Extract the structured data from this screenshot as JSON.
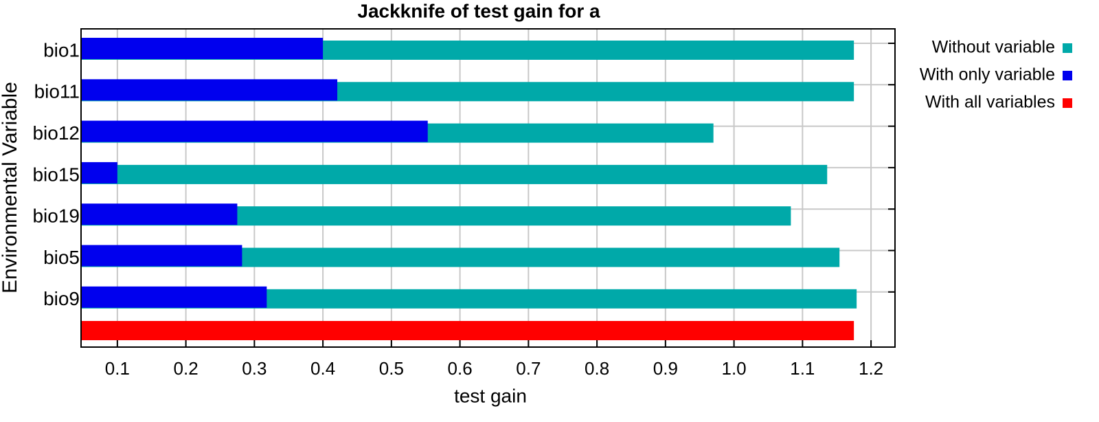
{
  "chart_data": {
    "type": "bar",
    "orientation": "horizontal",
    "title": "Jackknife of test gain for a",
    "x_label": "test gain",
    "y_label": "Environmental Variable",
    "categories": [
      "bio1",
      "bio11",
      "bio12",
      "bio15",
      "bio19",
      "bio5",
      "bio9",
      null
    ],
    "series": [
      {
        "name": "Without variable",
        "color": "#00a9a9",
        "values": [
          1.175,
          1.175,
          0.97,
          1.136,
          1.083,
          1.154,
          1.179,
          null
        ]
      },
      {
        "name": "With only variable",
        "color": "#0000ee",
        "values": [
          0.4,
          0.421,
          0.553,
          0.1,
          0.275,
          0.282,
          0.318,
          null
        ]
      },
      {
        "name": "With all variables",
        "color": "#ff0000",
        "values": [
          null,
          null,
          null,
          null,
          null,
          null,
          null,
          1.175
        ]
      }
    ],
    "xlim": [
      0.047,
      1.235
    ],
    "xticks": [
      0.1,
      0.2,
      0.3,
      0.4,
      0.5,
      0.6,
      0.7,
      0.8,
      0.9,
      {
        "value": 1,
        "label": "1.0"
      },
      1.1,
      1.2
    ],
    "grid": true,
    "legend": "right"
  }
}
